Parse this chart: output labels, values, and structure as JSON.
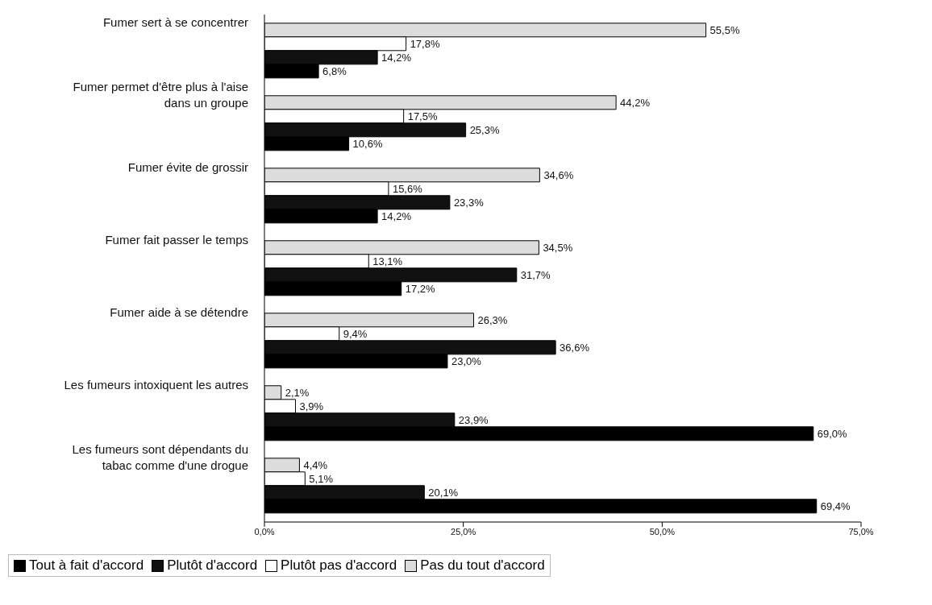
{
  "chart_data": {
    "type": "bar",
    "orientation": "horizontal",
    "categories": [
      "Fumer sert à se concentrer",
      "Fumer permet d'être plus à l'aise dans un groupe",
      "Fumer évite de grossir",
      "Fumer fait passer le temps",
      "Fumer aide à se détendre",
      "Les fumeurs intoxiquent les autres",
      "Les fumeurs sont dépendants du tabac comme d'une drogue"
    ],
    "series": [
      {
        "name": "Pas du tout d'accord",
        "color": "#dcdcdc",
        "values": [
          55.5,
          44.2,
          34.6,
          34.5,
          26.3,
          2.1,
          4.4
        ],
        "value_labels": [
          "55,5%",
          "44,2%",
          "34,6%",
          "34,5%",
          "26,3%",
          "2,1%",
          "4,4%"
        ]
      },
      {
        "name": "Plutôt pas d'accord",
        "color": "#ffffff",
        "values": [
          17.8,
          17.5,
          15.6,
          13.1,
          9.4,
          3.9,
          5.1
        ],
        "value_labels": [
          "17,8%",
          "17,5%",
          "15,6%",
          "13,1%",
          "9,4%",
          "3,9%",
          "5,1%"
        ]
      },
      {
        "name": "Plutôt d'accord",
        "color": "#111111",
        "values": [
          14.2,
          25.3,
          23.3,
          31.7,
          36.6,
          23.9,
          20.1
        ],
        "value_labels": [
          "14,2%",
          "25,3%",
          "23,3%",
          "31,7%",
          "36,6%",
          "23,9%",
          "20,1%"
        ]
      },
      {
        "name": "Tout à fait d'accord",
        "color": "#000000",
        "values": [
          6.8,
          10.6,
          14.2,
          17.2,
          23.0,
          69.0,
          69.4
        ],
        "value_labels": [
          "6,8%",
          "10,6%",
          "14,2%",
          "17,2%",
          "23,0%",
          "69,0%",
          "69,4%"
        ]
      }
    ],
    "xlim": [
      0,
      75
    ],
    "xticks": [
      {
        "value": 0,
        "label": "0,0%"
      },
      {
        "value": 25,
        "label": "25,0%"
      },
      {
        "value": 50,
        "label": "50,0%"
      },
      {
        "value": 75,
        "label": "75,0%"
      }
    ],
    "legend": "bottom"
  }
}
